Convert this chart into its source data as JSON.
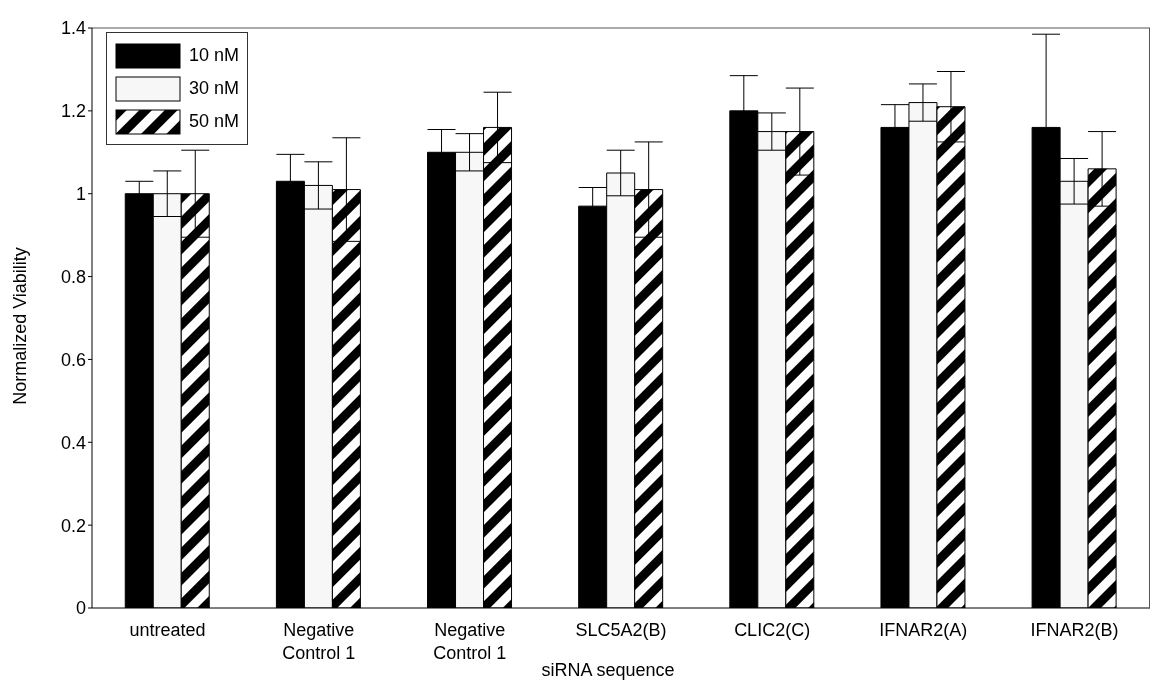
{
  "chart_data": {
    "type": "bar",
    "xlabel": "siRNA sequence",
    "ylabel": "Normalized Viability",
    "categories": [
      "untreated",
      "Negative Control 1",
      "Negative Control 1",
      "SLC5A2(B)",
      "CLIC2(C)",
      "IFNAR2(A)",
      "IFNAR2(B)"
    ],
    "series": [
      {
        "name": "10 nM",
        "color": "#000000",
        "values": [
          1.0,
          1.03,
          1.1,
          0.97,
          1.2,
          1.16,
          1.16
        ],
        "errors": [
          0.03,
          0.065,
          0.055,
          0.045,
          0.085,
          0.055,
          0.225
        ]
      },
      {
        "name": "30 nM",
        "color": "#f7f7f7",
        "values": [
          1.0,
          1.02,
          1.1,
          1.05,
          1.15,
          1.22,
          1.03
        ],
        "errors": [
          0.055,
          0.057,
          0.045,
          0.055,
          0.045,
          0.045,
          0.055
        ]
      },
      {
        "name": "50 nM",
        "color": "#000000",
        "values": [
          1.0,
          1.01,
          1.16,
          1.01,
          1.15,
          1.21,
          1.06
        ],
        "errors": [
          0.105,
          0.125,
          0.085,
          0.115,
          0.105,
          0.085,
          0.09
        ]
      }
    ],
    "ylim": [
      0,
      1.4
    ],
    "yticks": [
      0,
      0.2,
      0.4,
      0.6,
      0.8,
      1,
      1.2,
      1.4
    ],
    "grid": false,
    "legend": "top left"
  }
}
